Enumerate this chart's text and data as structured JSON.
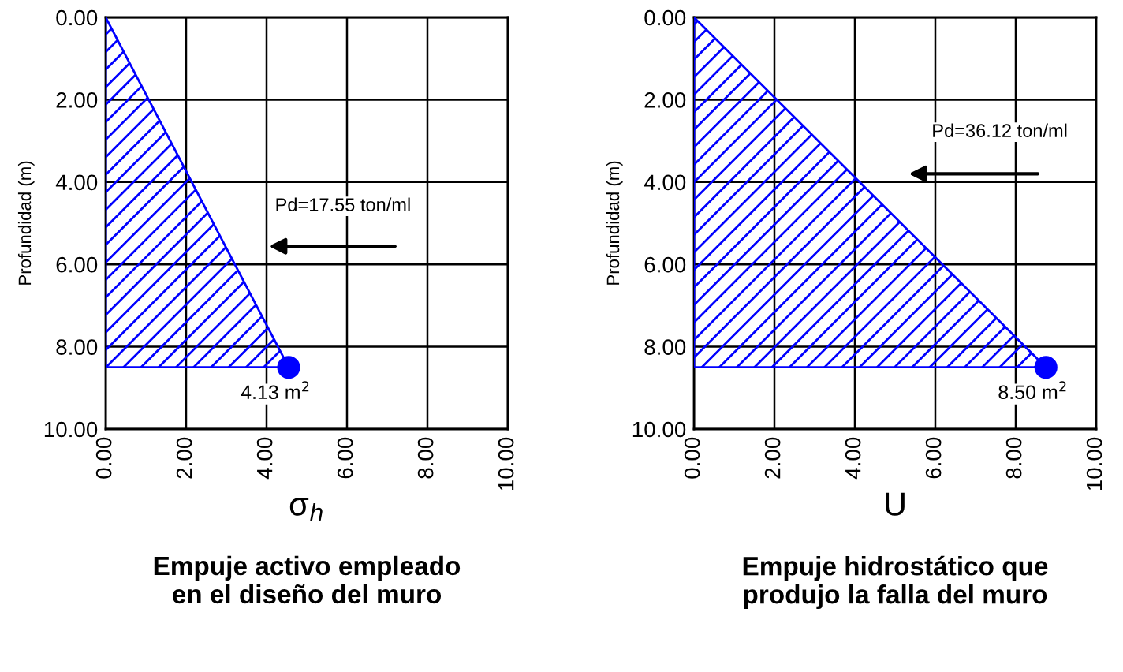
{
  "chart_data": [
    {
      "type": "area",
      "title": "Empuje activo empleado\nen el diseño del muro",
      "xlabel": "σ$_{h}$",
      "ylabel": "Profundidad (m)",
      "xlim": [
        0,
        10
      ],
      "ylim": [
        10,
        0
      ],
      "xticks": [
        {
          "value": 0,
          "label": "0.00"
        },
        {
          "value": 2,
          "label": "2.00"
        },
        {
          "value": 4,
          "label": "4.00"
        },
        {
          "value": 6,
          "label": "6.00"
        },
        {
          "value": 8,
          "label": "8.00"
        },
        {
          "value": 10,
          "label": "10.00"
        }
      ],
      "yticks": [
        {
          "value": 0,
          "label": "0.00"
        },
        {
          "value": 2,
          "label": "2.00"
        },
        {
          "value": 4,
          "label": "4.00"
        },
        {
          "value": 6,
          "label": "6.00"
        },
        {
          "value": 8,
          "label": "8.00"
        },
        {
          "value": 10,
          "label": "10.00"
        }
      ],
      "grid": true,
      "legend": false,
      "series": [
        {
          "color": "#0000ff",
          "x": [
            0,
            4.55,
            0
          ],
          "values": [
            0,
            8.5,
            8.5
          ]
        },
        {
          "type": "scatter",
          "color": "#0000ff",
          "marker": "circle",
          "x": [
            4.55
          ],
          "values": [
            8.5
          ]
        }
      ],
      "annotations": [
        "Pd=17.55 ton/ml",
        {
          "text": "4.13 m$^{2}$",
          "x": 4.55,
          "y": 8.5
        }
      ]
    },
    {
      "type": "area",
      "title": "Empuje hidrostático que\nprodujo la falla del muro",
      "xlabel": "U",
      "ylabel": "Profundidad (m)",
      "xlim": [
        0,
        10
      ],
      "ylim": [
        10,
        0
      ],
      "xticks": [
        {
          "value": 0,
          "label": "0.00"
        },
        {
          "value": 2,
          "label": "2.00"
        },
        {
          "value": 4,
          "label": "4.00"
        },
        {
          "value": 6,
          "label": "6.00"
        },
        {
          "value": 8,
          "label": "8.00"
        },
        {
          "value": 10,
          "label": "10.00"
        }
      ],
      "yticks": [
        {
          "value": 0,
          "label": "0.00"
        },
        {
          "value": 2,
          "label": "2.00"
        },
        {
          "value": 4,
          "label": "4.00"
        },
        {
          "value": 6,
          "label": "6.00"
        },
        {
          "value": 8,
          "label": "8.00"
        },
        {
          "value": 10,
          "label": "10.00"
        }
      ],
      "grid": true,
      "legend": false,
      "series": [
        {
          "color": "#0000ff",
          "x": [
            0,
            8.75,
            0
          ],
          "values": [
            0,
            8.5,
            8.5
          ]
        },
        {
          "type": "scatter",
          "color": "#0000ff",
          "marker": "circle",
          "x": [
            8.75
          ],
          "values": [
            8.5
          ]
        }
      ],
      "annotations": [
        "Pd=36.12 ton/ml",
        {
          "text": "8.50 m$^{2}$",
          "x": 8.75,
          "y": 8.5
        }
      ]
    }
  ]
}
